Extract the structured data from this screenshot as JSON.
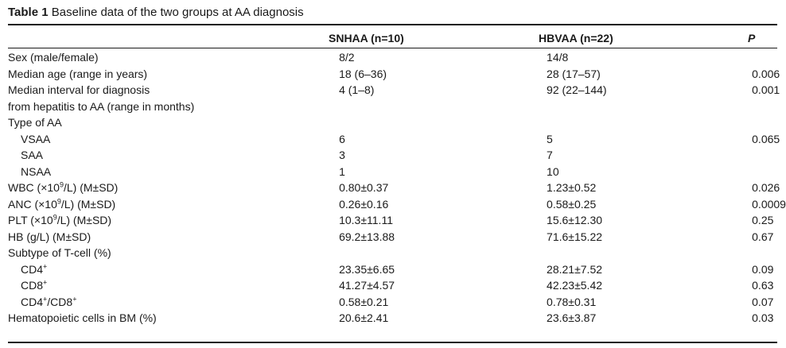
{
  "caption": {
    "label": "Table 1",
    "text": "Baseline data of the two groups at AA diagnosis"
  },
  "header": {
    "col1": "SNHAA (n=10)",
    "col2": "HBVAA (n=22)",
    "col3": "P"
  },
  "rows": [
    {
      "label": "Sex (male/female)",
      "sup": "",
      "label_post": "",
      "v1": "8/2",
      "v2": "14/8",
      "p": "",
      "indent": false
    },
    {
      "label": "Median age (range in years)",
      "sup": "",
      "label_post": "",
      "v1": "18 (6–36)",
      "v2": "28 (17–57)",
      "p": "0.006",
      "indent": false
    },
    {
      "label": "Median interval for diagnosis",
      "sup": "",
      "label_post": "",
      "v1": "4 (1–8)",
      "v2": "92 (22–144)",
      "p": "0.001",
      "indent": false
    },
    {
      "label": "from hepatitis to AA (range in months)",
      "sup": "",
      "label_post": "",
      "v1": "",
      "v2": "",
      "p": "",
      "indent": false
    },
    {
      "label": "Type of AA",
      "sup": "",
      "label_post": "",
      "v1": "",
      "v2": "",
      "p": "",
      "indent": false
    },
    {
      "label": "VSAA",
      "sup": "",
      "label_post": "",
      "v1": "6",
      "v2": "5",
      "p": "0.065",
      "indent": true
    },
    {
      "label": "SAA",
      "sup": "",
      "label_post": "",
      "v1": "3",
      "v2": "7",
      "p": "",
      "indent": true
    },
    {
      "label": "NSAA",
      "sup": "",
      "label_post": "",
      "v1": "1",
      "v2": "10",
      "p": "",
      "indent": true
    },
    {
      "label": "WBC (×10",
      "sup": "9",
      "label_post": "/L) (M±SD)",
      "v1": "0.80±0.37",
      "v2": "1.23±0.52",
      "p": "0.026",
      "indent": false
    },
    {
      "label": "ANC (×10",
      "sup": "9",
      "label_post": "/L) (M±SD)",
      "v1": "0.26±0.16",
      "v2": "0.58±0.25",
      "p": "0.0009",
      "indent": false
    },
    {
      "label": "PLT (×10",
      "sup": "9",
      "label_post": "/L) (M±SD)",
      "v1": "10.3±11.11",
      "v2": "15.6±12.30",
      "p": "0.25",
      "indent": false
    },
    {
      "label": "HB (g/L) (M±SD)",
      "sup": "",
      "label_post": "",
      "v1": "69.2±13.88",
      "v2": "71.6±15.22",
      "p": "0.67",
      "indent": false
    },
    {
      "label": "Subtype of T-cell (%)",
      "sup": "",
      "label_post": "",
      "v1": "",
      "v2": "",
      "p": "",
      "indent": false
    },
    {
      "label": "CD4",
      "sup": "+",
      "label_post": "",
      "v1": "23.35±6.65",
      "v2": "28.21±7.52",
      "p": "0.09",
      "indent": true
    },
    {
      "label": "CD8",
      "sup": "+",
      "label_post": "",
      "v1": "41.27±4.57",
      "v2": "42.23±5.42",
      "p": "0.63",
      "indent": true
    },
    {
      "label": "CD4",
      "sup": "+",
      "label_post": "/CD8",
      "sup2": "+",
      "v1": "0.58±0.21",
      "v2": "0.78±0.31",
      "p": "0.07",
      "indent": true
    },
    {
      "label": "Hematopoietic cells in BM (%)",
      "sup": "",
      "label_post": "",
      "v1": "20.6±2.41",
      "v2": "23.6±3.87",
      "p": "0.03",
      "indent": false
    }
  ]
}
